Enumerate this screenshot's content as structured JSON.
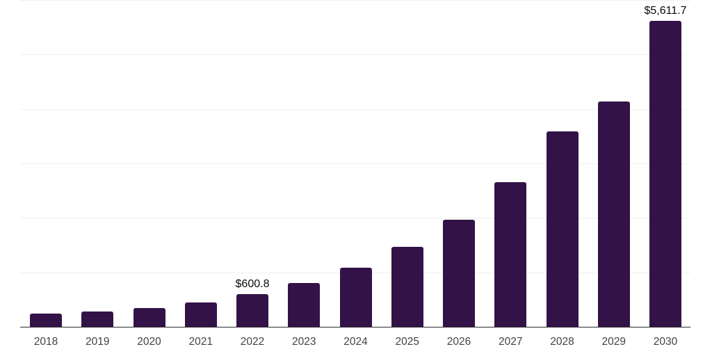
{
  "chart_data": {
    "type": "bar",
    "title": "",
    "xlabel": "",
    "ylabel": "",
    "categories": [
      "2018",
      "2019",
      "2020",
      "2021",
      "2022",
      "2023",
      "2024",
      "2025",
      "2026",
      "2027",
      "2028",
      "2029",
      "2030"
    ],
    "values": [
      245,
      285,
      345,
      450,
      600.8,
      810,
      1090,
      1470,
      1965,
      2660,
      3590,
      4130,
      5611.7
    ],
    "value_labels": {
      "2022": "$600.8",
      "2030": "$5,611.7"
    },
    "ylim": [
      0,
      6000
    ],
    "ytick_interval": 1000,
    "grid": "horizontal",
    "legend": "none",
    "colors": {
      "bar": "#331347",
      "gridline": "#f0f0f0",
      "axis": "#2b2b2b",
      "tick_label": "#424242",
      "value_label": "#0a0a0a",
      "background": "#ffffff"
    }
  }
}
